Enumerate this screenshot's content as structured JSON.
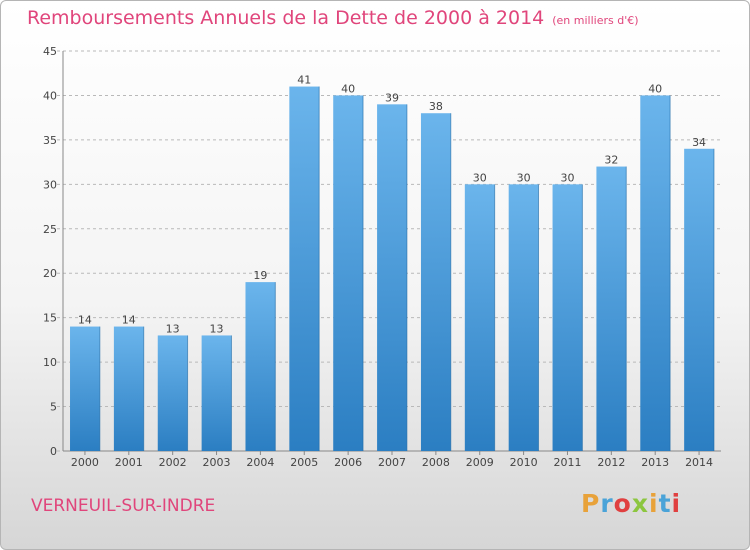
{
  "header": {
    "title": "Remboursements Annuels de la Dette de 2000 à 2014",
    "subtitle": "(en milliers d'€)"
  },
  "footer": {
    "city": "VERNEUIL-SUR-INDRE"
  },
  "logo": {
    "letters": [
      "P",
      "r",
      "o",
      "x",
      "i",
      "t",
      "i"
    ],
    "colors": [
      "#e8a23a",
      "#4aa3d8",
      "#e04040",
      "#8cc63f",
      "#e8a23a",
      "#4aa3d8",
      "#e04040"
    ]
  },
  "colors": {
    "bar_light": "#6bb5ec",
    "bar_dark": "#2b7ec2",
    "accent": "#e0457b",
    "grid": "#b9b9b9"
  },
  "chart_data": {
    "type": "bar",
    "categories": [
      "2000",
      "2001",
      "2002",
      "2003",
      "2004",
      "2005",
      "2006",
      "2007",
      "2008",
      "2009",
      "2010",
      "2011",
      "2012",
      "2013",
      "2014"
    ],
    "values": [
      14,
      14,
      13,
      13,
      19,
      41,
      40,
      39,
      38,
      30,
      30,
      30,
      32,
      40,
      34
    ],
    "title": "Remboursements Annuels de la Dette de 2000 à 2014",
    "xlabel": "",
    "ylabel": "",
    "ylim": [
      0,
      45
    ],
    "yticks": [
      0,
      5,
      10,
      15,
      20,
      25,
      30,
      35,
      40,
      45
    ],
    "grid": true
  }
}
